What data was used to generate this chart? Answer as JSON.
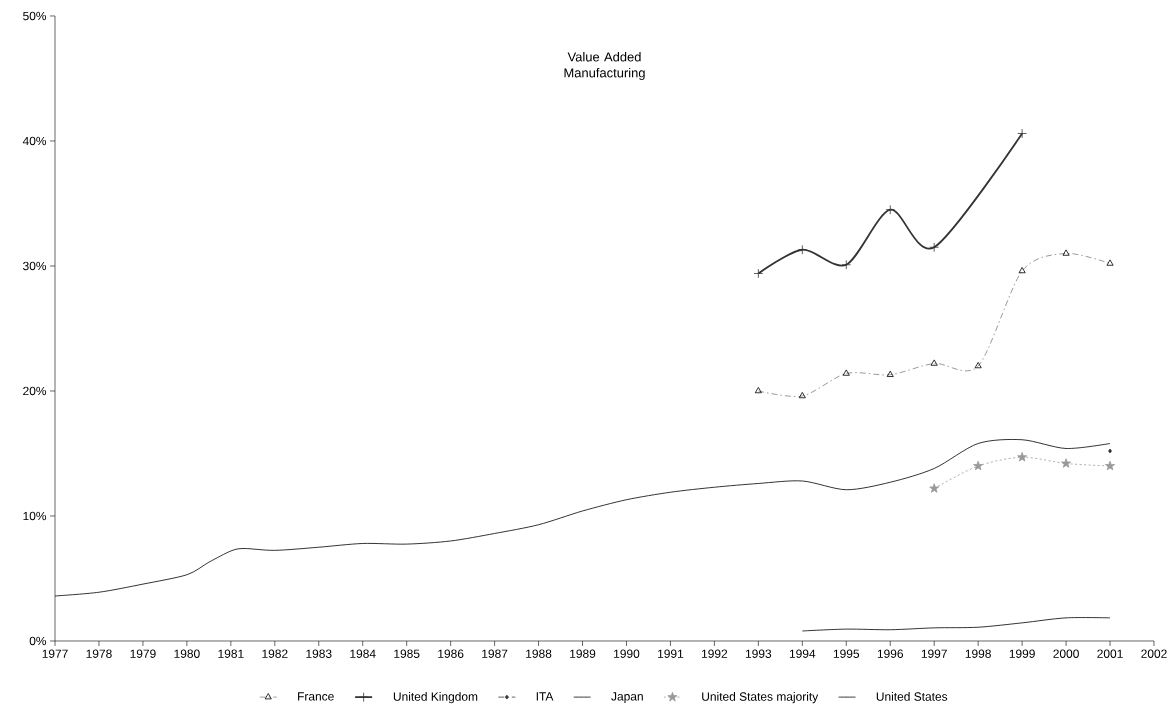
{
  "chart_data": {
    "type": "line",
    "title": "Value Added Manufacturing",
    "xlim": [
      1977,
      2002
    ],
    "xticks": [
      1977,
      1978,
      1979,
      1980,
      1981,
      1982,
      1983,
      1984,
      1985,
      1986,
      1987,
      1988,
      1989,
      1990,
      1991,
      1992,
      1993,
      1994,
      1995,
      1996,
      1997,
      1998,
      1999,
      2000,
      2001,
      2002
    ],
    "ylim": [
      0,
      50
    ],
    "yticks": [
      {
        "value": 0,
        "label": "0%"
      },
      {
        "value": 10,
        "label": "10%"
      },
      {
        "value": 20,
        "label": "20%"
      },
      {
        "value": 30,
        "label": "30%"
      },
      {
        "value": 40,
        "label": "40%"
      },
      {
        "value": 50,
        "label": "50%"
      }
    ],
    "grid": false,
    "legend": "bottom",
    "series": [
      {
        "name": "France",
        "color": "#808080",
        "marker": "triangle",
        "line_style": "dashed",
        "x": [
          1993,
          1994,
          1995,
          1996,
          1997,
          1998,
          1999,
          2000,
          2001
        ],
        "values": [
          20.0,
          19.6,
          21.4,
          21.3,
          22.2,
          22.0,
          29.6,
          31.0,
          30.2
        ]
      },
      {
        "name": "United Kingdom",
        "color": "#333333",
        "marker": "cross",
        "line_style": "solid",
        "x": [
          1993,
          1994,
          1995,
          1996,
          1997,
          1999
        ],
        "values": [
          29.4,
          31.3,
          30.1,
          34.5,
          31.5,
          40.6
        ]
      },
      {
        "name": "ITA",
        "color": "#333333",
        "marker": "diamond",
        "line_style": "dashed",
        "x": [
          2001
        ],
        "values": [
          15.2
        ]
      },
      {
        "name": "Japan",
        "color": "#000000",
        "marker": "none",
        "line_style": "solid",
        "x": [
          1994,
          1995,
          1996,
          1997,
          1998,
          1999,
          2000,
          2001
        ],
        "values": [
          0.8,
          0.95,
          0.9,
          1.05,
          1.1,
          1.45,
          1.85,
          1.85
        ]
      },
      {
        "name": "United States majority",
        "color": "#999999",
        "marker": "star",
        "line_style": "dotted",
        "x": [
          1997,
          1998,
          1999,
          2000,
          2001
        ],
        "values": [
          12.2,
          14.0,
          14.7,
          14.2,
          14.0
        ]
      },
      {
        "name": "United States",
        "color": "#000000",
        "marker": "none",
        "line_style": "solid",
        "x": [
          1977,
          1978,
          1979,
          1980,
          1980.5,
          1981,
          1981.3,
          1982,
          1983,
          1984,
          1985,
          1986,
          1987,
          1988,
          1989,
          1990,
          1991,
          1992,
          1993,
          1994,
          1995,
          1996,
          1997,
          1998,
          1999,
          2000,
          2001
        ],
        "values": [
          3.6,
          3.9,
          4.55,
          5.3,
          6.3,
          7.2,
          7.4,
          7.25,
          7.5,
          7.8,
          7.75,
          8.0,
          8.6,
          9.3,
          10.4,
          11.3,
          11.9,
          12.3,
          12.6,
          12.8,
          12.1,
          12.7,
          13.8,
          15.8,
          16.1,
          15.4,
          15.8
        ]
      }
    ]
  }
}
